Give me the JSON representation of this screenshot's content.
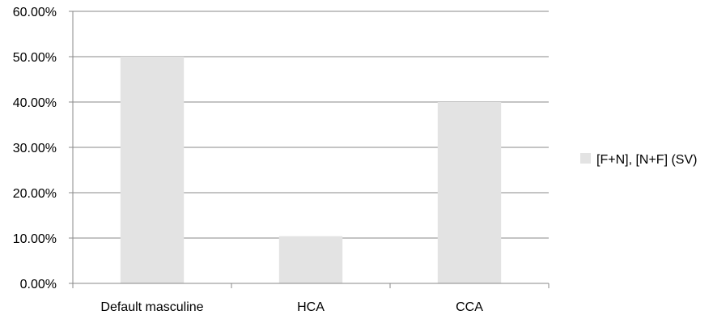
{
  "chart_data": {
    "type": "bar",
    "categories": [
      "Default masculine",
      "HCA",
      "CCA"
    ],
    "series": [
      {
        "name": "[F+N], [N+F] (SV)",
        "values": [
          50.0,
          10.4,
          40.0
        ],
        "color": "#e3e3e3"
      }
    ],
    "y_tick_labels": [
      "0.00%",
      "10.00%",
      "20.00%",
      "30.00%",
      "40.00%",
      "50.00%",
      "60.00%"
    ],
    "ylim": [
      0,
      60
    ],
    "y_unit": "percent",
    "grid": true,
    "legend_position": "right",
    "title": "",
    "xlabel": "",
    "ylabel": ""
  }
}
